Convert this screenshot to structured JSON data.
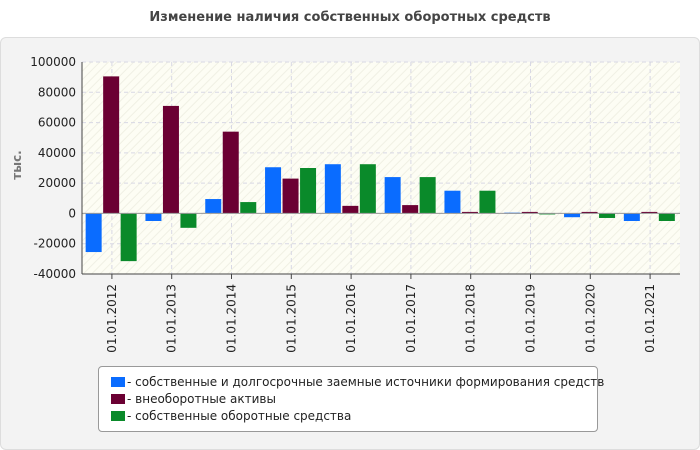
{
  "title": "Изменение наличия собственных оборотных средств",
  "chart_data": {
    "type": "bar",
    "title": "Изменение наличия собственных оборотных средств",
    "xlabel": "",
    "ylabel": "тыс.",
    "ylim": [
      -40000,
      100000
    ],
    "yticks": [
      100000,
      80000,
      60000,
      40000,
      20000,
      0,
      -20000,
      -40000
    ],
    "grid": true,
    "legend_position": "bottom",
    "categories": [
      "01.01.2012",
      "01.01.2013",
      "01.01.2014",
      "01.01.2015",
      "01.01.2016",
      "01.01.2017",
      "01.01.2018",
      "01.01.2019",
      "01.01.2020",
      "01.01.2021"
    ],
    "series": [
      {
        "name": "- собственные и долгосрочные заемные источники формирования средств",
        "color": "#0a6cff",
        "values": [
          -25500,
          -5000,
          9500,
          30500,
          32500,
          24000,
          15000,
          500,
          -2500,
          -5000
        ]
      },
      {
        "name": "- внеоборотные активы",
        "color": "#6b0033",
        "values": [
          90500,
          71000,
          54000,
          23000,
          5000,
          5500,
          1000,
          1000,
          1000,
          1000
        ]
      },
      {
        "name": "- собственные оборотные средства",
        "color": "#0a8a2a",
        "values": [
          -31500,
          -9500,
          7500,
          30000,
          32500,
          24000,
          15000,
          -500,
          -3000,
          -5000
        ]
      }
    ]
  }
}
